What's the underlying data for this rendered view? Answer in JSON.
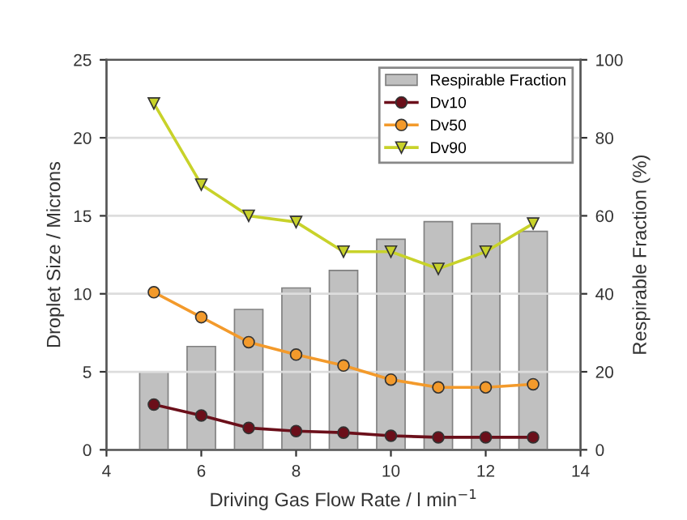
{
  "chart_data": {
    "type": "line",
    "xlabel": "Driving Gas Flow Rate / l min$^{−1}$",
    "ylabel": "Droplet Size / Microns",
    "y2label": "Respirable Fraction (%)",
    "x": [
      5,
      6,
      7,
      8,
      9,
      10,
      11,
      12,
      13
    ],
    "xlim": [
      4,
      14
    ],
    "xticks": [
      4,
      6,
      8,
      10,
      12,
      14
    ],
    "ylim": [
      0,
      25
    ],
    "yticks": [
      0,
      5,
      10,
      15,
      20,
      25
    ],
    "y2lim": [
      0,
      100
    ],
    "y2ticks": [
      0,
      20,
      40,
      60,
      80,
      100
    ],
    "grid": "y",
    "legend": "top right",
    "marker": "circle",
    "line_style": "solid",
    "series": [
      {
        "name": "Respirable Fraction",
        "type": "bar",
        "axis": "y2",
        "color": "#c0c0c0",
        "values": [
          20,
          26.5,
          36,
          41.5,
          46,
          54,
          58.5,
          58,
          56
        ]
      },
      {
        "name": "Dv10",
        "color": "#6b0f1a",
        "values": [
          2.9,
          2.2,
          1.4,
          1.2,
          1.1,
          0.9,
          0.8,
          0.8,
          0.8
        ]
      },
      {
        "name": "Dv50",
        "color": "#f39a2b",
        "values": [
          10.1,
          8.5,
          6.9,
          6.1,
          5.4,
          4.5,
          4.0,
          4.0,
          4.2
        ]
      },
      {
        "name": "Dv90",
        "color": "#c8d22a",
        "marker": "triangle",
        "values": [
          22.2,
          17.0,
          15.0,
          14.6,
          12.7,
          12.7,
          11.6,
          12.7,
          14.5
        ]
      }
    ]
  }
}
